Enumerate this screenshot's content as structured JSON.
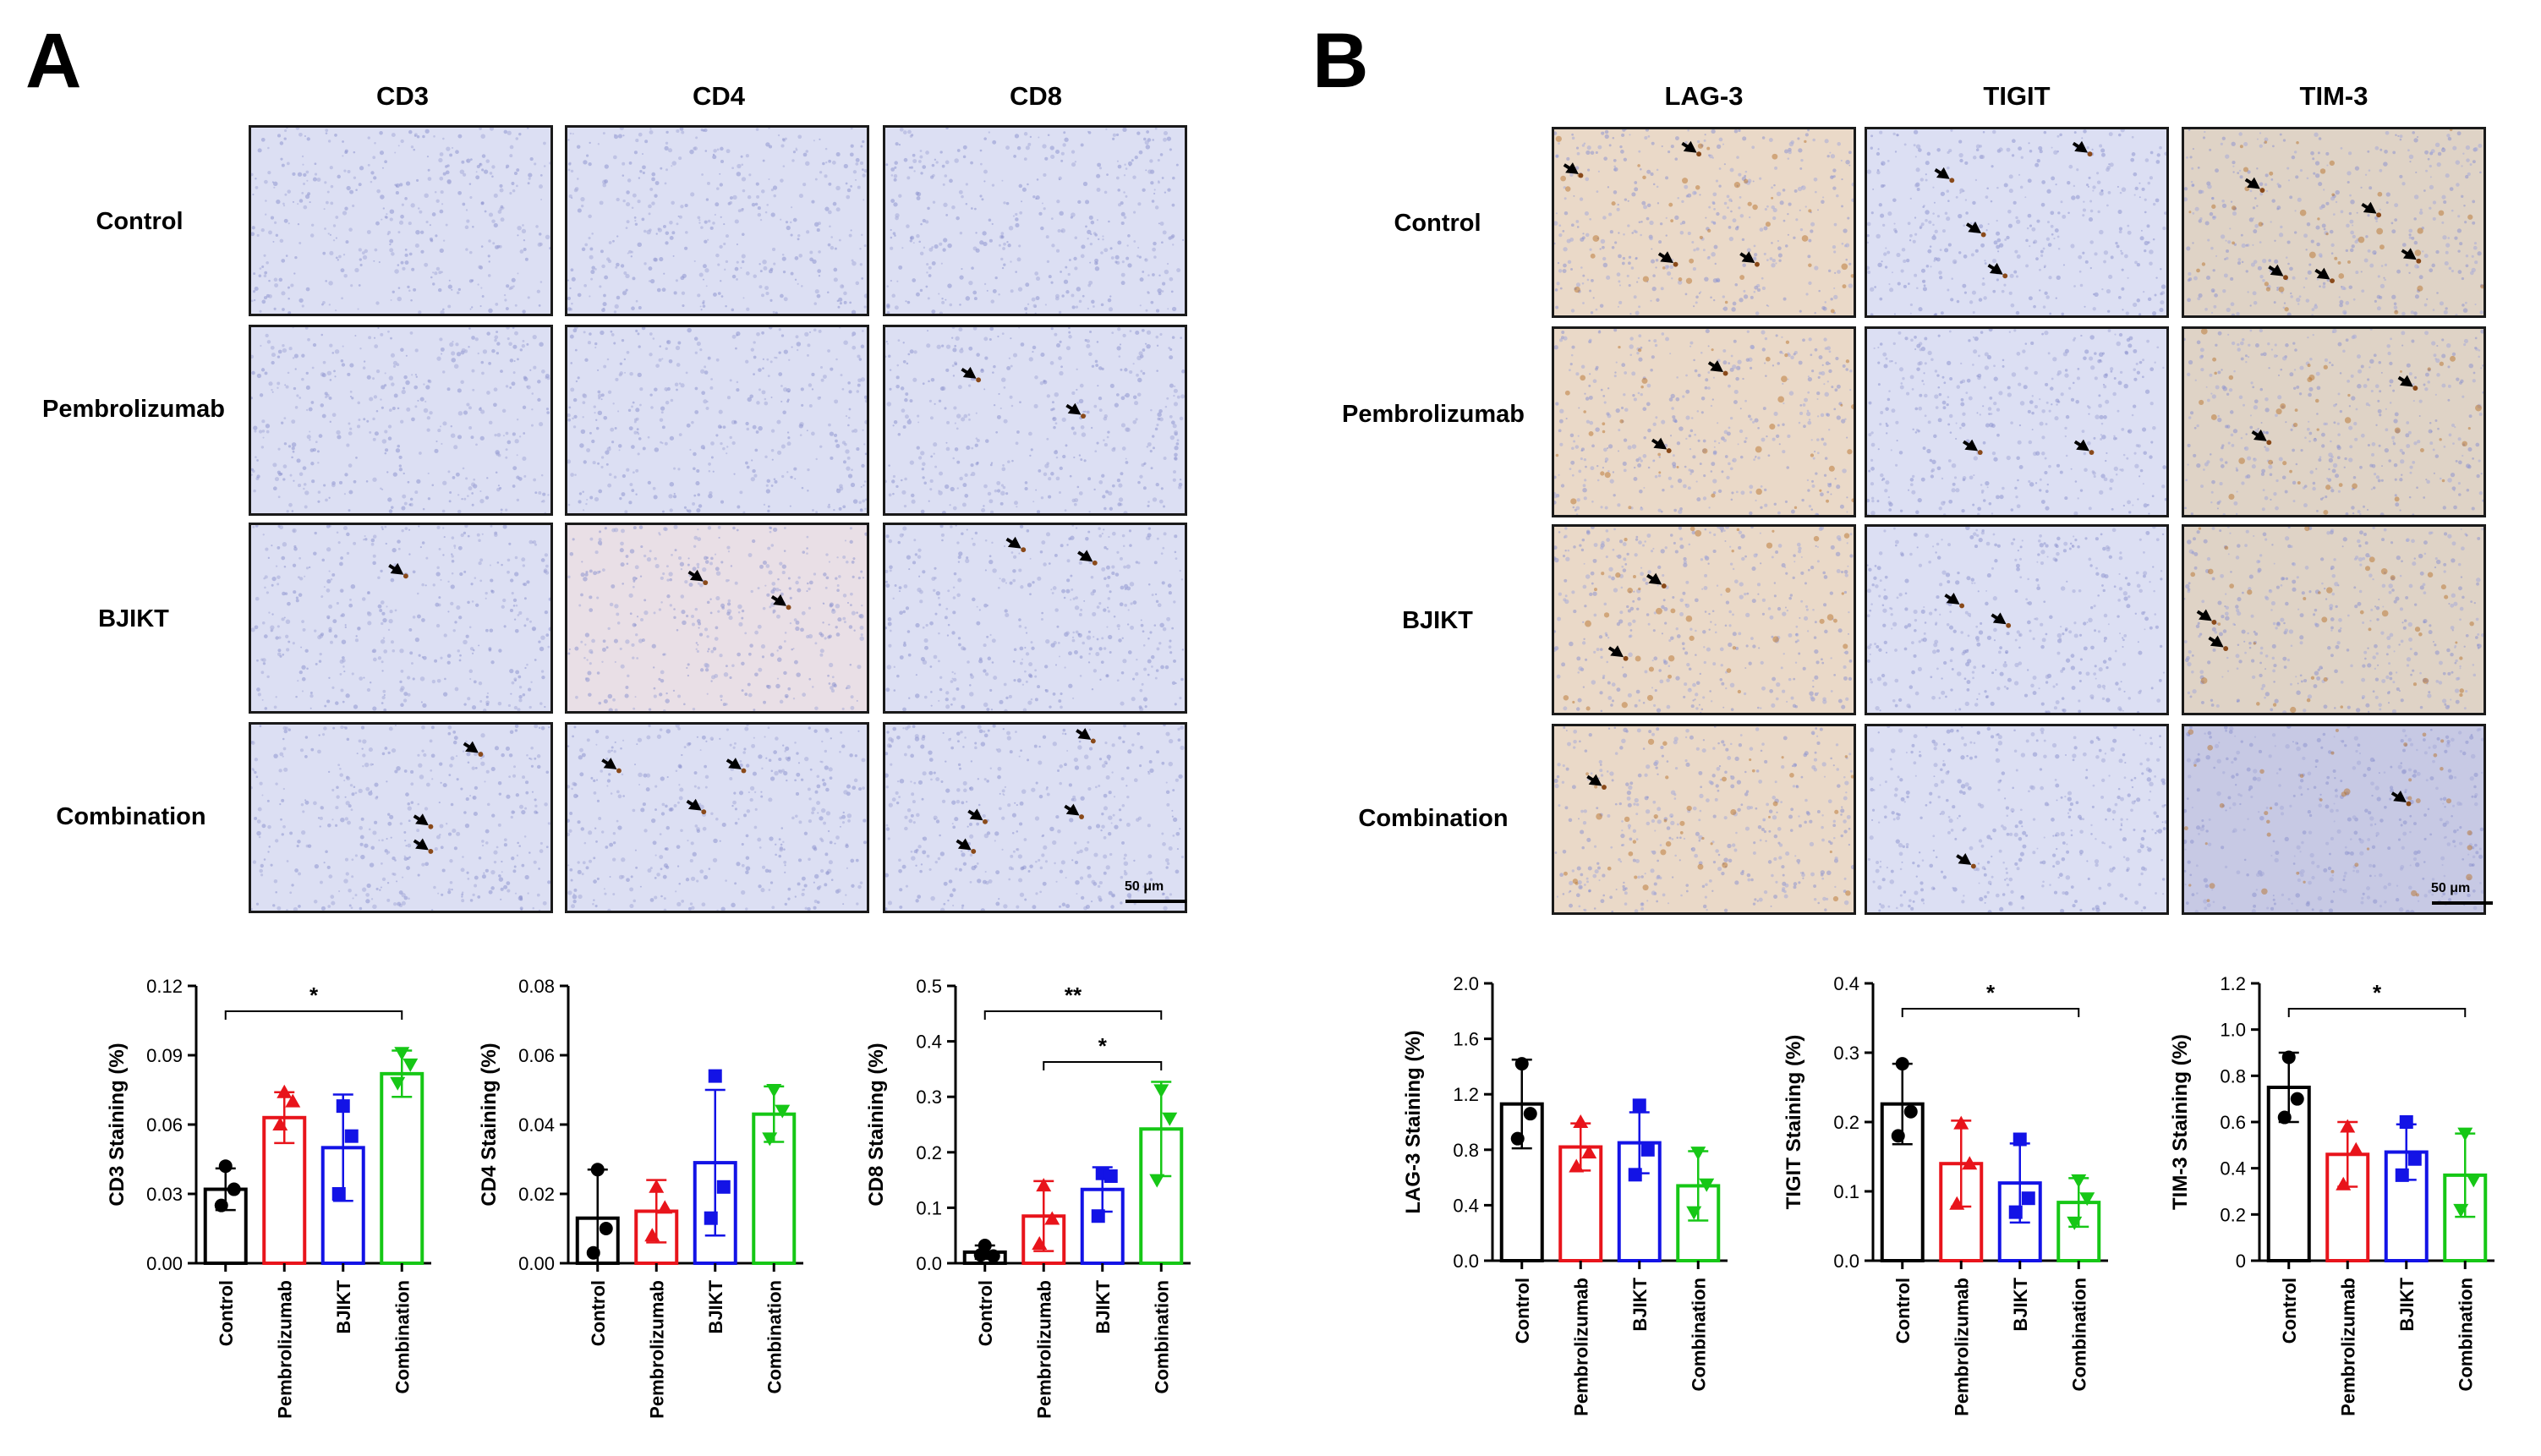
{
  "figure": {
    "panel_labels": [
      "A",
      "B"
    ],
    "treatments": [
      "Control",
      "Pembrolizumab",
      "BJIKT",
      "Combination"
    ],
    "panel_a_markers": [
      "CD3",
      "CD4",
      "CD8"
    ],
    "panel_b_markers": [
      "LAG-3",
      "TIGIT",
      "TIM-3"
    ],
    "scale_bar_label": "50 μm",
    "arrow_icon": "arrow-icon"
  },
  "colors": {
    "Control": "#000000",
    "Pembrolizumab": "#e8141b",
    "BJIKT": "#1313e6",
    "Combination": "#16c716",
    "tissue_blue": "#d9dcf2",
    "tissue_brown": "#e6d6c4",
    "tissue_purple": "#d7d4e6"
  },
  "chart_data": [
    {
      "type": "bar",
      "marker": "CD3",
      "categories": [
        "Control",
        "Pembrolizumab",
        "BJIKT",
        "Combination"
      ],
      "values": [
        0.032,
        0.063,
        0.05,
        0.082
      ],
      "errors": [
        0.009,
        0.011,
        0.023,
        0.01
      ],
      "points": [
        [
          0.042,
          0.032,
          0.025
        ],
        [
          0.074,
          0.07,
          0.06
        ],
        [
          0.068,
          0.055,
          0.03
        ],
        [
          0.091,
          0.086,
          0.078
        ]
      ],
      "ylabel": "CD3 Staining (%)",
      "ylim": [
        0,
        0.12
      ],
      "yticks": [
        "0.00",
        "0.03",
        "0.06",
        "0.09",
        "0.12"
      ],
      "significance": [
        {
          "from": 0,
          "to": 3,
          "label": "*"
        }
      ]
    },
    {
      "type": "bar",
      "marker": "CD4",
      "categories": [
        "Control",
        "Pembrolizumab",
        "BJIKT",
        "Combination"
      ],
      "values": [
        0.013,
        0.015,
        0.029,
        0.043
      ],
      "errors": [
        0.014,
        0.009,
        0.021,
        0.008
      ],
      "points": [
        [
          0.027,
          0.01,
          0.003
        ],
        [
          0.022,
          0.016,
          0.008
        ],
        [
          0.054,
          0.022,
          0.013
        ],
        [
          0.05,
          0.044,
          0.036
        ]
      ],
      "ylabel": "CD4 Staining (%)",
      "ylim": [
        0,
        0.08
      ],
      "yticks": [
        "0.00",
        "0.02",
        "0.04",
        "0.06",
        "0.08"
      ],
      "significance": []
    },
    {
      "type": "bar",
      "marker": "CD8",
      "categories": [
        "Control",
        "Pembrolizumab",
        "BJIKT",
        "Combination"
      ],
      "values": [
        0.02,
        0.085,
        0.133,
        0.242
      ],
      "errors": [
        0.012,
        0.063,
        0.04,
        0.085
      ],
      "points": [
        [
          0.032,
          0.013,
          0.015
        ],
        [
          0.14,
          0.08,
          0.035
        ],
        [
          0.162,
          0.157,
          0.085
        ],
        [
          0.312,
          0.261,
          0.15
        ]
      ],
      "ylabel": "CD8 Staining (%)",
      "ylim": [
        0,
        0.5
      ],
      "yticks": [
        "0.0",
        "0.1",
        "0.2",
        "0.3",
        "0.4",
        "0.5"
      ],
      "significance": [
        {
          "from": 0,
          "to": 3,
          "label": "**"
        },
        {
          "from": 1,
          "to": 3,
          "label": "*"
        }
      ]
    },
    {
      "type": "bar",
      "marker": "LAG-3",
      "categories": [
        "Control",
        "Pembrolizumab",
        "BJIKT",
        "Combination"
      ],
      "values": [
        1.13,
        0.82,
        0.85,
        0.54
      ],
      "errors": [
        0.32,
        0.17,
        0.22,
        0.25
      ],
      "points": [
        [
          1.42,
          1.06,
          0.88
        ],
        [
          1.0,
          0.78,
          0.68
        ],
        [
          1.12,
          0.8,
          0.62
        ],
        [
          0.78,
          0.55,
          0.35
        ]
      ],
      "ylabel": "LAG-3 Staining (%)",
      "ylim": [
        0,
        2.0
      ],
      "yticks": [
        "0.0",
        "0.4",
        "0.8",
        "1.2",
        "1.6",
        "2.0"
      ],
      "significance": []
    },
    {
      "type": "bar",
      "marker": "TIGIT",
      "categories": [
        "Control",
        "Pembrolizumab",
        "BJIKT",
        "Combination"
      ],
      "values": [
        0.226,
        0.14,
        0.112,
        0.084
      ],
      "errors": [
        0.058,
        0.062,
        0.057,
        0.035
      ],
      "points": [
        [
          0.284,
          0.215,
          0.18
        ],
        [
          0.198,
          0.14,
          0.082
        ],
        [
          0.175,
          0.09,
          0.07
        ],
        [
          0.116,
          0.09,
          0.055
        ]
      ],
      "ylabel": "TIGIT Staining (%)",
      "ylim": [
        0,
        0.4
      ],
      "yticks": [
        "0.0",
        "0.1",
        "0.2",
        "0.3",
        "0.4"
      ],
      "significance": [
        {
          "from": 0,
          "to": 3,
          "label": "*"
        }
      ]
    },
    {
      "type": "bar",
      "marker": "TIM-3",
      "categories": [
        "Control",
        "Pembrolizumab",
        "BJIKT",
        "Combination"
      ],
      "values": [
        0.75,
        0.46,
        0.47,
        0.37
      ],
      "errors": [
        0.15,
        0.14,
        0.12,
        0.18
      ],
      "points": [
        [
          0.88,
          0.7,
          0.62
        ],
        [
          0.58,
          0.48,
          0.33
        ],
        [
          0.6,
          0.44,
          0.37
        ],
        [
          0.55,
          0.35,
          0.22
        ]
      ],
      "ylabel": "TIM-3 Staining (%)",
      "ylim": [
        0,
        1.2
      ],
      "yticks": [
        "0",
        "0.2",
        "0.4",
        "0.6",
        "0.8",
        "1.0",
        "1.2"
      ],
      "significance": [
        {
          "from": 0,
          "to": 3,
          "label": "*"
        }
      ]
    }
  ]
}
